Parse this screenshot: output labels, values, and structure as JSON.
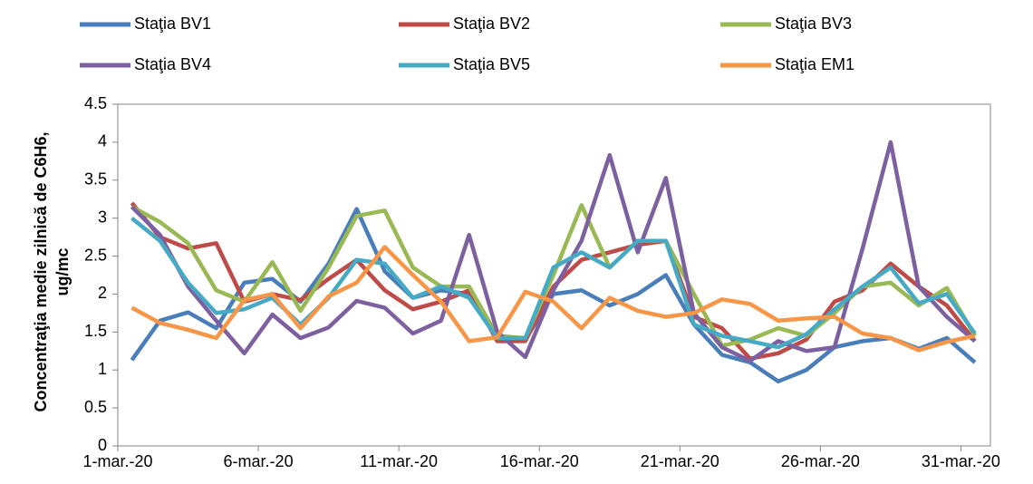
{
  "chart_data": {
    "type": "line",
    "y_label_lines": [
      "Concentraţia medie zilnică de C6H6,",
      "ug/mc"
    ],
    "categories": [
      "1-mar.-20",
      null,
      null,
      null,
      null,
      "6-mar.-20",
      null,
      null,
      null,
      null,
      "11-mar.-20",
      null,
      null,
      null,
      null,
      "16-mar.-20",
      null,
      null,
      null,
      null,
      "21-mar.-20",
      null,
      null,
      null,
      null,
      "26-mar.-20",
      null,
      null,
      null,
      null,
      "31-mar.-20"
    ],
    "ylim": [
      0,
      4.5
    ],
    "yticks": [
      0,
      0.5,
      1,
      1.5,
      2,
      2.5,
      3,
      3.5,
      4,
      4.5
    ],
    "grid": false,
    "legend": "top",
    "series": [
      {
        "name": "Staţia BV1",
        "color": "#4a7ebb",
        "values": [
          1.13,
          1.65,
          1.76,
          1.55,
          2.15,
          2.2,
          1.9,
          2.4,
          3.12,
          2.3,
          1.95,
          2.05,
          2.0,
          1.45,
          1.4,
          2.0,
          2.05,
          1.85,
          2.0,
          2.25,
          1.6,
          1.2,
          1.1,
          0.85,
          1.0,
          1.3,
          1.38,
          1.42,
          1.28,
          1.42,
          1.1
        ]
      },
      {
        "name": "Staţia BV2",
        "color": "#be4b48",
        "values": [
          3.2,
          2.75,
          2.6,
          2.67,
          1.9,
          2.0,
          1.92,
          2.2,
          2.45,
          2.05,
          1.8,
          1.9,
          2.05,
          1.38,
          1.38,
          2.1,
          2.45,
          2.55,
          2.65,
          2.7,
          1.7,
          1.55,
          1.15,
          1.22,
          1.4,
          1.9,
          2.05,
          2.4,
          2.1,
          1.85,
          1.38
        ]
      },
      {
        "name": "Staţia BV3",
        "color": "#98b954",
        "values": [
          3.15,
          2.95,
          2.67,
          2.05,
          1.9,
          2.42,
          1.78,
          2.35,
          3.03,
          3.1,
          2.35,
          2.1,
          2.1,
          1.45,
          1.42,
          2.25,
          3.17,
          2.35,
          2.7,
          2.7,
          2.0,
          1.32,
          1.4,
          1.55,
          1.45,
          1.75,
          2.1,
          2.15,
          1.85,
          2.08,
          1.45
        ]
      },
      {
        "name": "Staţia BV4",
        "color": "#7d60a0",
        "values": [
          3.15,
          2.78,
          2.1,
          1.65,
          1.22,
          1.73,
          1.42,
          1.56,
          1.91,
          1.82,
          1.48,
          1.65,
          2.78,
          1.5,
          1.17,
          2.05,
          2.7,
          3.83,
          2.55,
          3.53,
          1.75,
          1.3,
          1.12,
          1.38,
          1.25,
          1.3,
          2.6,
          4.0,
          2.1,
          1.7,
          1.38
        ]
      },
      {
        "name": "Staţia BV5",
        "color": "#46aac5",
        "values": [
          3.0,
          2.7,
          2.15,
          1.75,
          1.8,
          1.95,
          1.6,
          1.95,
          2.45,
          2.4,
          1.95,
          2.1,
          1.95,
          1.42,
          1.42,
          2.35,
          2.55,
          2.35,
          2.7,
          2.7,
          1.6,
          1.45,
          1.38,
          1.3,
          1.47,
          1.8,
          2.1,
          2.35,
          1.88,
          2.0,
          1.48
        ]
      },
      {
        "name": "Staţia EM1",
        "color": "#f79646",
        "values": [
          1.82,
          1.62,
          1.53,
          1.42,
          1.92,
          2.0,
          1.55,
          1.97,
          2.15,
          2.62,
          2.25,
          1.9,
          1.38,
          1.43,
          2.03,
          1.9,
          1.55,
          1.95,
          1.78,
          1.7,
          1.75,
          1.93,
          1.87,
          1.65,
          1.68,
          1.7,
          1.48,
          1.42,
          1.26,
          1.37,
          1.45
        ]
      }
    ]
  }
}
